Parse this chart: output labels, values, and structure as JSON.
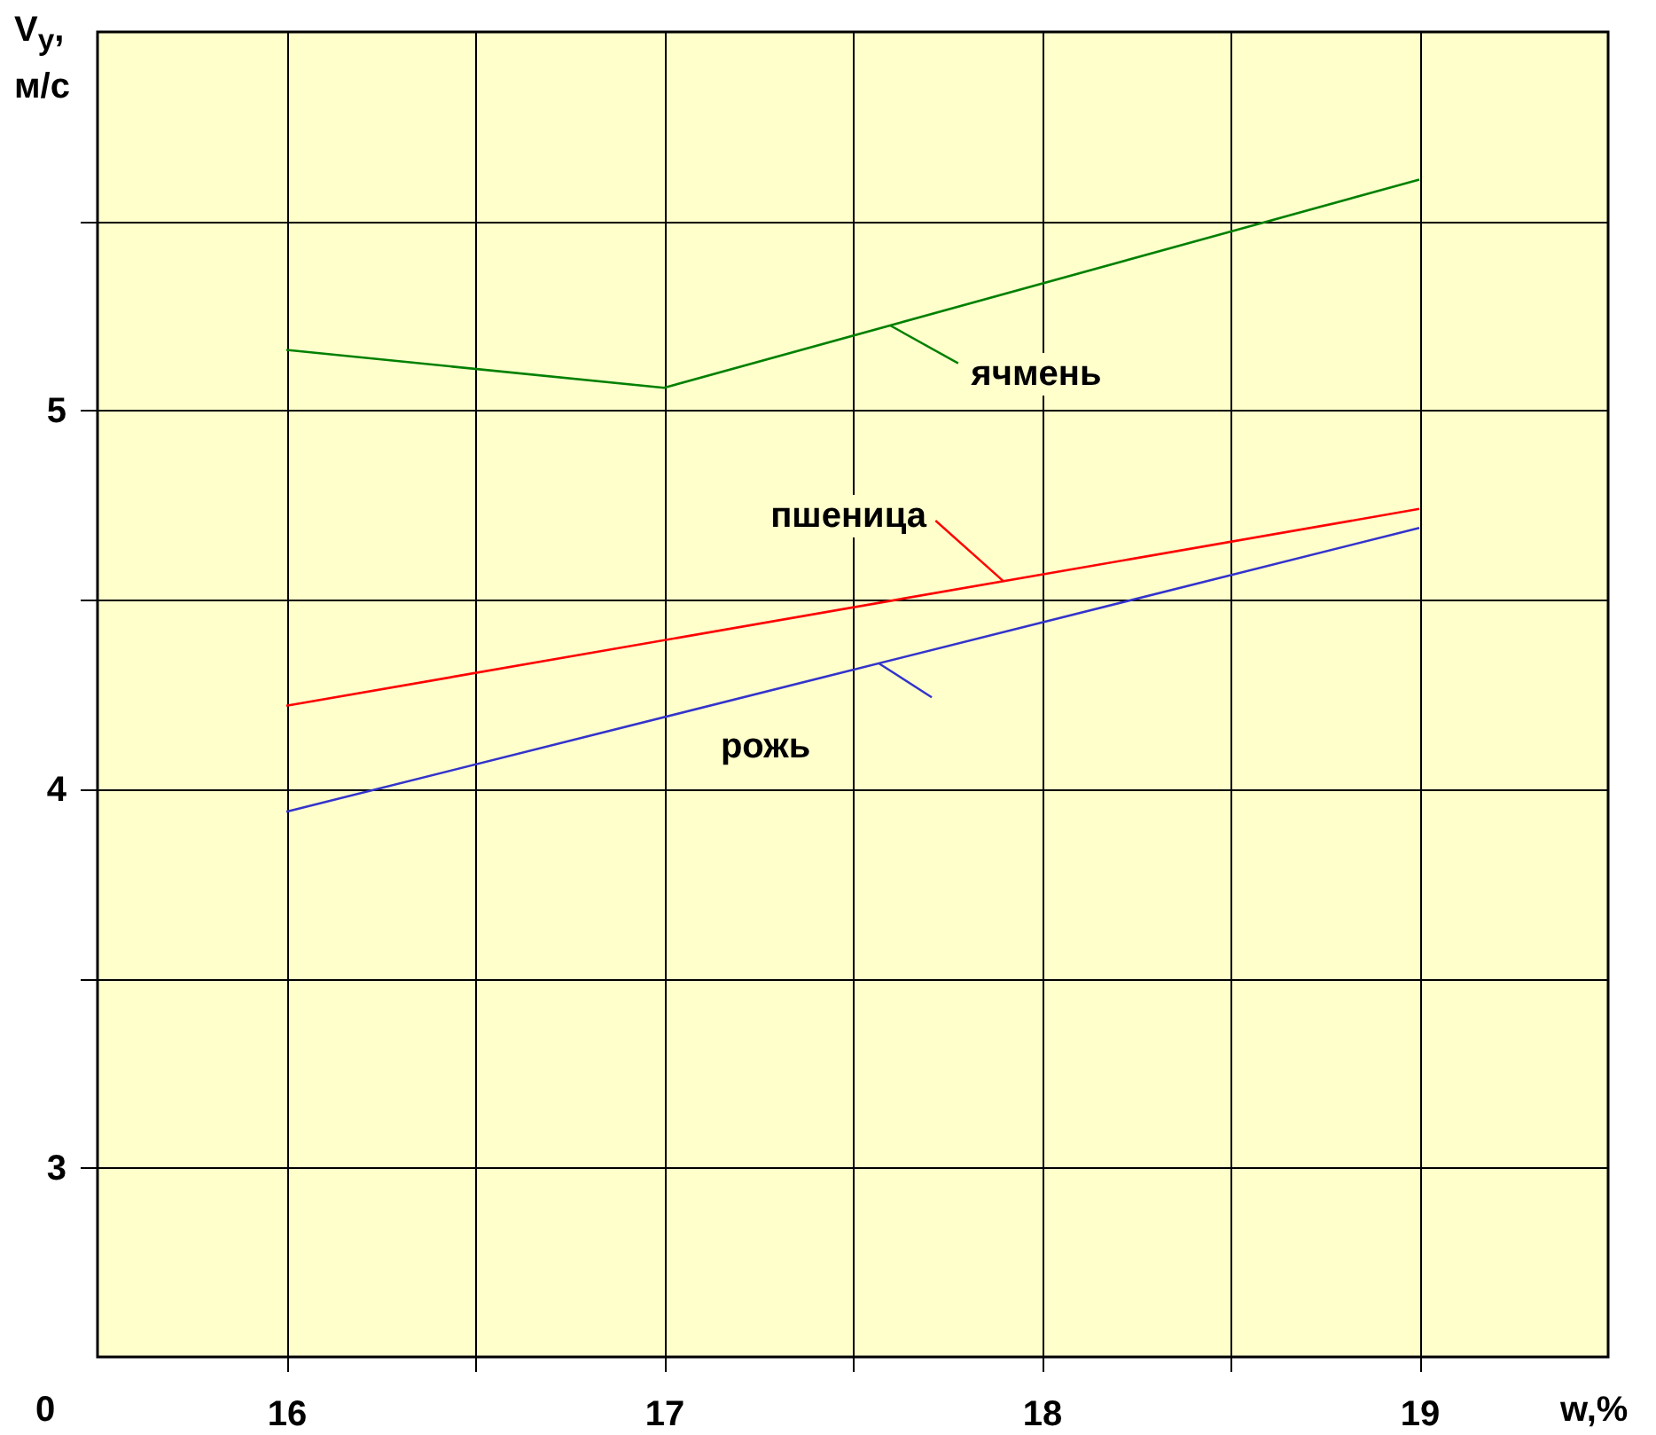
{
  "chart_data": {
    "type": "line",
    "xlabel": "w,%",
    "ylabel": "V$_{у}$, м/с",
    "annotations": [
      "0"
    ],
    "xlim": [
      15.5,
      19.5
    ],
    "ylim": [
      2.5,
      6
    ],
    "xticks": [
      16,
      {
        "value": 16.5,
        "label": null
      },
      17,
      {
        "value": 17.5,
        "label": null
      },
      18,
      {
        "value": 18.5,
        "label": null
      },
      19
    ],
    "yticks": [
      3,
      {
        "value": 3.5,
        "label": null
      },
      4,
      {
        "value": 4.5,
        "label": null
      },
      5,
      {
        "value": 5.5,
        "label": null
      }
    ],
    "grid": true,
    "marker": "none",
    "line_style": "solid",
    "series": [
      {
        "name": "ячмень",
        "color": "#008000",
        "x": [
          16,
          17,
          19
        ],
        "values": [
          5.16,
          5.06,
          5.61
        ]
      },
      {
        "name": "пшеница",
        "color": "#ff0000",
        "x": [
          16,
          19
        ],
        "values": [
          4.22,
          4.74
        ]
      },
      {
        "name": "рожь",
        "color": "#3333cc",
        "x": [
          16,
          19
        ],
        "values": [
          3.94,
          4.69
        ]
      }
    ]
  }
}
